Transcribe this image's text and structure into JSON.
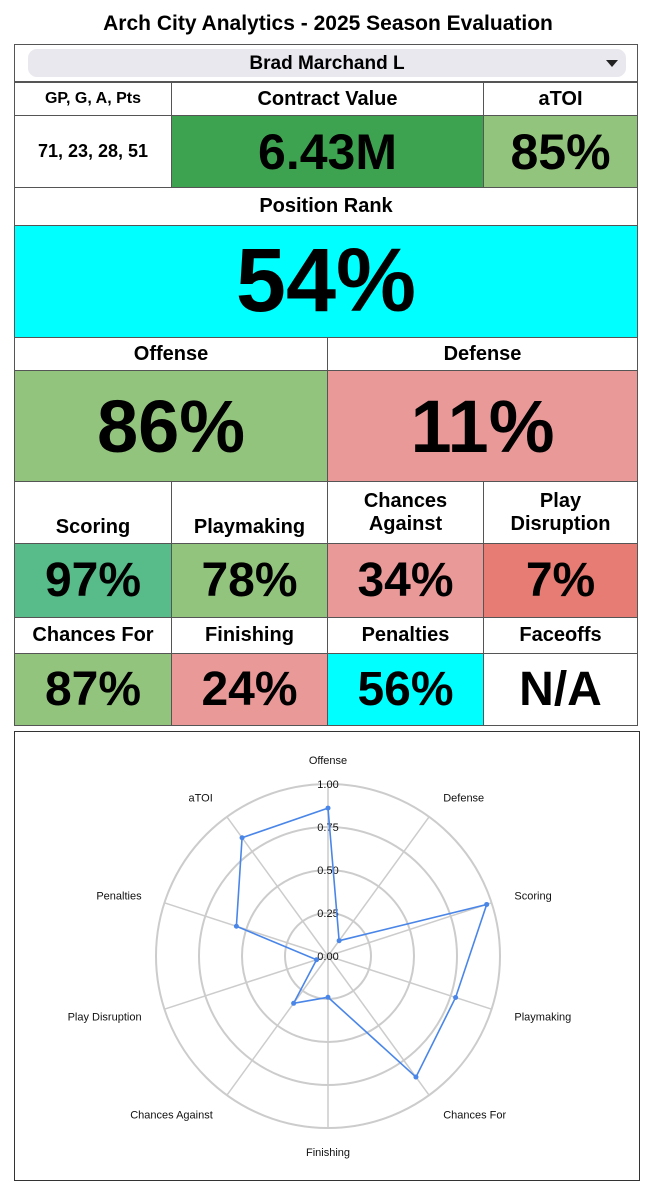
{
  "header": {
    "title": "Arch City Analytics - 2025 Season Evaluation"
  },
  "player": {
    "name": "Brad Marchand L"
  },
  "summary": {
    "stats_label": "GP, G, A, Pts",
    "stats_value": "71, 23, 28, 51",
    "contract_label": "Contract Value",
    "contract_value": "6.43M",
    "atoi_label": "aTOI",
    "atoi_value": "85%"
  },
  "position_rank": {
    "label": "Position Rank",
    "value": "54%"
  },
  "offense": {
    "label": "Offense",
    "value": "86%"
  },
  "defense": {
    "label": "Defense",
    "value": "11%"
  },
  "metrics_row1": [
    {
      "label": "Scoring",
      "value": "97%"
    },
    {
      "label": "Playmaking",
      "value": "78%"
    },
    {
      "label": "Chances Against",
      "value": "34%"
    },
    {
      "label": "Play Disruption",
      "value": "7%"
    }
  ],
  "metrics_row2": [
    {
      "label": "Chances For",
      "value": "87%"
    },
    {
      "label": "Finishing",
      "value": "24%"
    },
    {
      "label": "Penalties",
      "value": "56%"
    },
    {
      "label": "Faceoffs",
      "value": "N/A"
    }
  ],
  "colors": {
    "dark_green": "#3ea350",
    "light_green": "#93c47d",
    "teal_green": "#57bb8a",
    "cyan": "#00ffff",
    "pink": "#ea9999",
    "red": "#e67c73",
    "white": "#ffffff",
    "line": "#4a86e8",
    "grid": "#cccccc"
  },
  "chart_data": {
    "type": "radar",
    "categories": [
      "Offense",
      "Defense",
      "Scoring",
      "Playmaking",
      "Chances For",
      "Finishing",
      "Chances Against",
      "Play Disruption",
      "Penalties",
      "aTOI"
    ],
    "values": [
      0.86,
      0.11,
      0.97,
      0.78,
      0.87,
      0.24,
      0.34,
      0.07,
      0.56,
      0.85
    ],
    "ticks": [
      "0.00",
      "0.25",
      "0.50",
      "0.75",
      "1.00"
    ],
    "rlim": [
      0,
      1
    ],
    "grid": true
  }
}
